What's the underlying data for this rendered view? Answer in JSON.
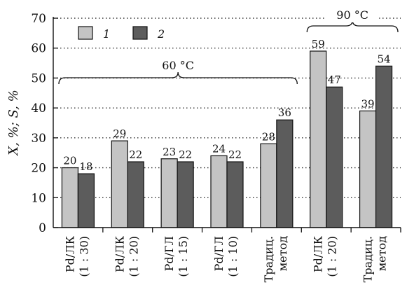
{
  "chart_data": {
    "type": "bar",
    "ylabel": "X, %; S, %",
    "ylim": [
      0,
      70
    ],
    "yticks": [
      "0",
      "10",
      "20",
      "30",
      "40",
      "50",
      "60",
      "70"
    ],
    "grid": "horizontal dotted",
    "legend_position": "top-left",
    "categories": [
      [
        "Pd/ЛК",
        "(1 : 30)"
      ],
      [
        "Pd/ЛК",
        "(1 : 20)"
      ],
      [
        "Pd/ГЛ",
        "(1 : 15)"
      ],
      [
        "Pd/ГЛ",
        "(1 : 10)"
      ],
      [
        "Традиц.",
        "метод"
      ],
      [
        "Pd/ЛК",
        "(1 : 20)"
      ],
      [
        "Традиц.",
        "метод"
      ]
    ],
    "series": [
      {
        "name": "1",
        "color": "#c4c4c4",
        "values": [
          20,
          29,
          23,
          24,
          28,
          59,
          39
        ]
      },
      {
        "name": "2",
        "color": "#5c5c5c",
        "values": [
          18,
          22,
          22,
          22,
          36,
          47,
          54
        ]
      }
    ],
    "annotations": [
      {
        "text": "60 °C",
        "groups": [
          0,
          4
        ]
      },
      {
        "text": "90 °C",
        "groups": [
          5,
          6
        ]
      }
    ]
  }
}
